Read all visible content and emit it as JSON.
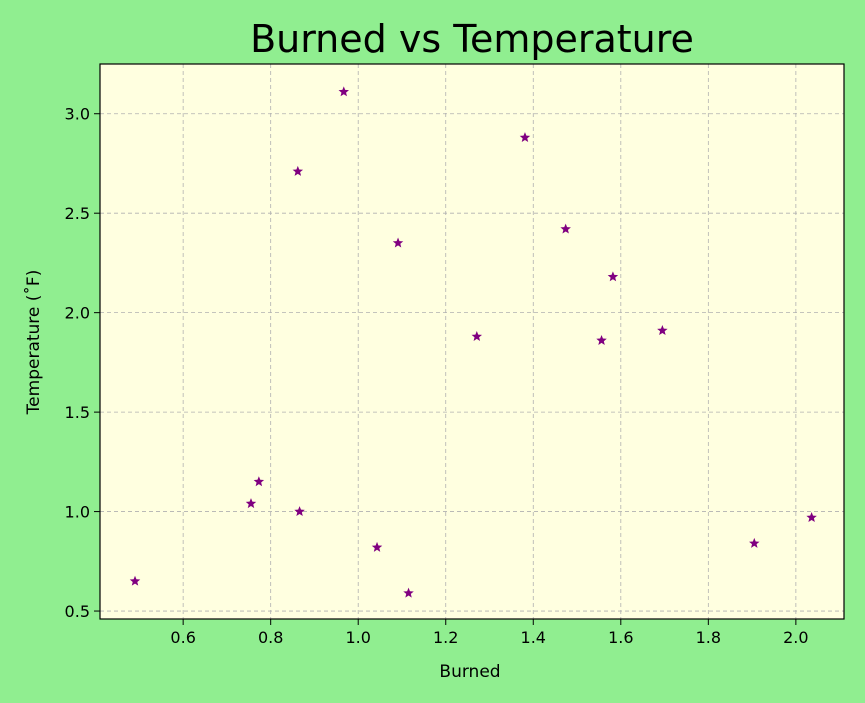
{
  "chart_data": {
    "type": "scatter",
    "title": "Burned vs Temperature",
    "xlabel": "Burned",
    "ylabel": "Temperature (˚F)",
    "xlim": [
      0.41,
      2.11
    ],
    "ylim": [
      0.46,
      3.25
    ],
    "xticks": [
      0.6,
      0.8,
      1.0,
      1.2,
      1.4,
      1.6,
      1.8,
      2.0
    ],
    "xtick_labels": [
      "0.6",
      "0.8",
      "1.0",
      "1.2",
      "1.4",
      "1.6",
      "1.8",
      "2.0"
    ],
    "yticks": [
      0.5,
      1.0,
      1.5,
      2.0,
      2.5,
      3.0
    ],
    "ytick_labels": [
      "0.5",
      "1.0",
      "1.5",
      "2.0",
      "2.5",
      "3.0"
    ],
    "grid": true,
    "marker": "star",
    "colors": {
      "figure_bg": "#90ee90",
      "plot_bg": "#ffffe0",
      "marker": "#800080",
      "grid": "#b0b0b0"
    },
    "points": [
      {
        "x": 0.49,
        "y": 0.65
      },
      {
        "x": 0.755,
        "y": 1.04
      },
      {
        "x": 0.773,
        "y": 1.15
      },
      {
        "x": 0.862,
        "y": 2.71
      },
      {
        "x": 0.866,
        "y": 1.0
      },
      {
        "x": 0.967,
        "y": 3.11
      },
      {
        "x": 1.043,
        "y": 0.82
      },
      {
        "x": 1.091,
        "y": 2.35
      },
      {
        "x": 1.115,
        "y": 0.59
      },
      {
        "x": 1.271,
        "y": 1.88
      },
      {
        "x": 1.381,
        "y": 2.88
      },
      {
        "x": 1.474,
        "y": 2.42
      },
      {
        "x": 1.556,
        "y": 1.86
      },
      {
        "x": 1.582,
        "y": 2.18
      },
      {
        "x": 1.695,
        "y": 1.91
      },
      {
        "x": 1.905,
        "y": 0.84
      },
      {
        "x": 2.036,
        "y": 0.97
      }
    ]
  }
}
